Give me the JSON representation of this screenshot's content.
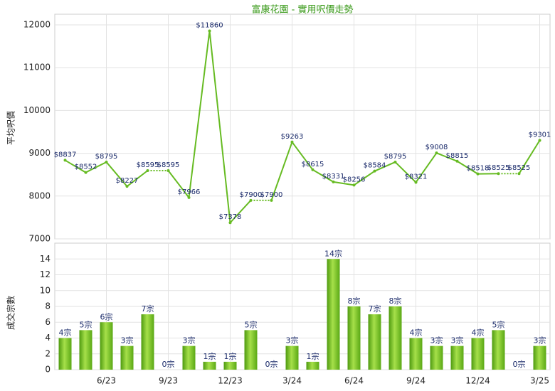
{
  "chart_data": [
    {
      "type": "line",
      "title": "富康花園 - 實用呎價走勢",
      "y_label": "平均呎價",
      "values": [
        8837,
        8552,
        8795,
        8227,
        8595,
        8595,
        7966,
        11860,
        7378,
        7900,
        7900,
        9263,
        8615,
        8331,
        8256,
        8584,
        8795,
        8321,
        9008,
        8815,
        8518,
        8525,
        8525,
        9301
      ],
      "value_labels": [
        "$8837",
        "$8552",
        "$8795",
        "$8227",
        "$8595",
        "$8595",
        "$7966",
        "$11860",
        "$7378",
        "$7900",
        "$7900",
        "$9263",
        "$8615",
        "$8331",
        "$8256",
        "$8584",
        "$8795",
        "$8321",
        "$9008",
        "$8815",
        "$8518",
        "$8525",
        "$8525",
        "$9301"
      ],
      "color": "#66bb22",
      "ylim": [
        7000,
        12250
      ],
      "yticks": [
        7000,
        8000,
        9000,
        10000,
        11000,
        12000
      ],
      "grid": true
    },
    {
      "type": "bar",
      "y_label": "成交宗數",
      "categories": [
        null,
        null,
        "6/23",
        null,
        null,
        "9/23",
        null,
        null,
        "12/23",
        null,
        null,
        "3/24",
        null,
        null,
        "6/24",
        null,
        null,
        "9/24",
        null,
        null,
        "12/24",
        null,
        null,
        "3/25"
      ],
      "values": [
        4,
        5,
        6,
        3,
        7,
        0,
        3,
        1,
        1,
        5,
        0,
        3,
        1,
        14,
        8,
        7,
        8,
        4,
        3,
        3,
        4,
        5,
        0,
        3
      ],
      "value_labels": [
        "4宗",
        "5宗",
        "6宗",
        "3宗",
        "7宗",
        "0宗",
        "3宗",
        "1宗",
        "1宗",
        "5宗",
        "0宗",
        "3宗",
        "1宗",
        "14宗",
        "8宗",
        "7宗",
        "8宗",
        "4宗",
        "3宗",
        "3宗",
        "4宗",
        "5宗",
        "0宗",
        "3宗"
      ],
      "color": "#66bb22",
      "ylim": [
        0,
        16
      ],
      "yticks": [
        0,
        2,
        4,
        6,
        8,
        10,
        12,
        14
      ],
      "grid": true
    }
  ]
}
